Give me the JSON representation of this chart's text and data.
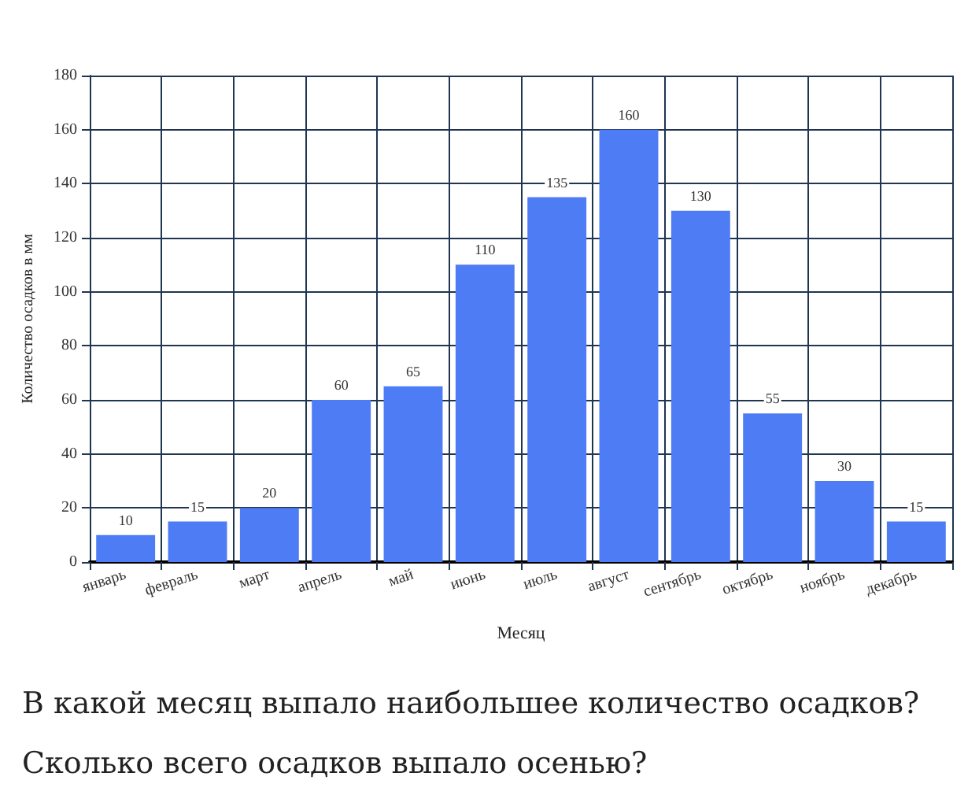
{
  "chart_data": {
    "type": "bar",
    "xlabel": "Месяц",
    "ylabel": "Количество осадков в мм",
    "categories": [
      "январь",
      "февраль",
      "март",
      "апрель",
      "май",
      "июнь",
      "июль",
      "август",
      "сентябрь",
      "октябрь",
      "ноябрь",
      "декабрь"
    ],
    "values": [
      10,
      15,
      20,
      60,
      65,
      110,
      135,
      160,
      130,
      55,
      30,
      15
    ],
    "color": "#4d7cf5",
    "ylim": [
      0,
      180
    ],
    "yticks": [
      0,
      20,
      40,
      60,
      80,
      100,
      120,
      140,
      160,
      180
    ],
    "grid": true,
    "data_labels": true,
    "annotations": [
      "В какой месяц выпало наибольшее количество осадков?",
      "Сколько всего осадков выпало осенью?"
    ]
  }
}
